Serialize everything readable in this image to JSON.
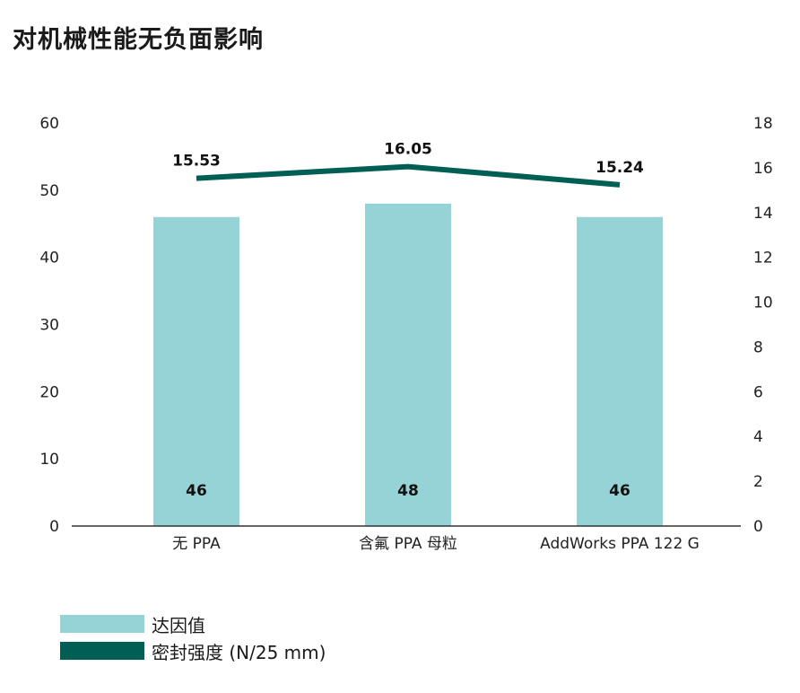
{
  "title": "对机械性能无负面影响",
  "colors": {
    "bar": "#96D3D6",
    "line": "#005F55",
    "axis": "#333333"
  },
  "chart_data": {
    "type": "bar",
    "categories": [
      "无 PPA",
      "含氟 PPA 母粒",
      "AddWorks PPA 122 G"
    ],
    "series": [
      {
        "name": "达因值",
        "type": "bar",
        "axis": "left",
        "values": [
          46,
          48,
          46
        ]
      },
      {
        "name": "密封强度 (N/25 mm)",
        "type": "line",
        "axis": "right",
        "values": [
          15.53,
          16.05,
          15.24
        ]
      }
    ],
    "bar_labels": [
      "46",
      "48",
      "46"
    ],
    "line_labels": [
      "15.53",
      "16.05",
      "15.24"
    ],
    "y_left": {
      "min": 0,
      "max": 60,
      "ticks": [
        "0",
        "10",
        "20",
        "30",
        "40",
        "50",
        "60"
      ]
    },
    "y_right": {
      "min": 0,
      "max": 18,
      "ticks": [
        "0",
        "2",
        "4",
        "6",
        "8",
        "10",
        "12",
        "14",
        "16",
        "18"
      ]
    },
    "grid": false,
    "legend_position": "bottom-left"
  }
}
